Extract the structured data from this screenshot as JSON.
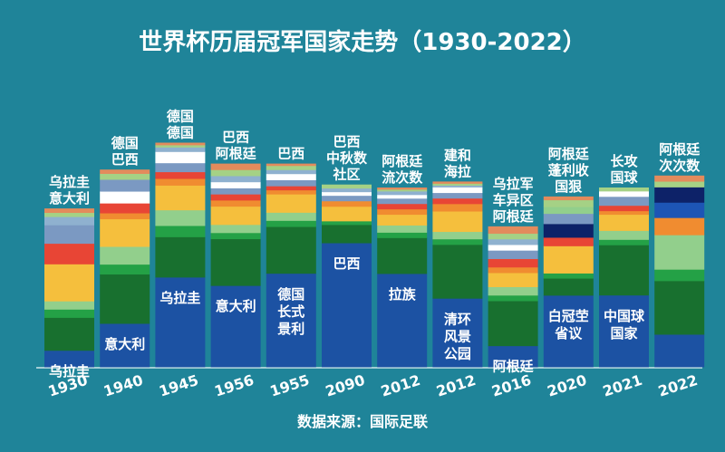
{
  "title": "世界杯历届冠军国家走势（1930-2022）",
  "source": "数据来源：国际足联",
  "chart_data": {
    "type": "bar",
    "stacked": true,
    "normalized_percent": true,
    "categories": [
      "1930",
      "1940",
      "1945",
      "1956",
      "1955",
      "2090",
      "2012",
      "2012",
      "2016",
      "2020",
      "2021",
      "2022"
    ],
    "top_labels": [
      [
        "乌拉圭",
        "意大利"
      ],
      [
        "德国",
        "巴西"
      ],
      [
        "德国",
        "德国"
      ],
      [
        "巴西",
        "阿根廷"
      ],
      [
        "巴西"
      ],
      [
        "巴西",
        "中秋数",
        "社区"
      ],
      [
        "阿根廷",
        "流次数"
      ],
      [
        "建和",
        "海拉"
      ],
      [
        "乌拉军",
        "车异区",
        "阿根廷"
      ],
      [
        "阿根廷",
        "蓬利收",
        "国狠"
      ],
      [
        "长攻",
        "国球"
      ],
      [
        "阿根廷",
        "次次数"
      ]
    ],
    "bottom_labels": [
      [
        "乌拉圭"
      ],
      [
        "意大利"
      ],
      [
        "乌拉圭"
      ],
      [
        "意大利"
      ],
      [
        "德国",
        "长式",
        "景利"
      ],
      [
        "巴西"
      ],
      [
        "拉族"
      ],
      [
        "清环",
        "风景",
        "公园"
      ],
      [
        "阿根廷"
      ],
      [
        "白冠茔",
        "省议"
      ],
      [
        "中国球",
        "国家"
      ],
      []
    ],
    "segments": [
      [
        {
          "color": "#1c52a3",
          "value": 8
        },
        {
          "color": "#18702f",
          "value": 16
        },
        {
          "color": "#24a146",
          "value": 4
        },
        {
          "color": "#92cf8c",
          "value": 4
        },
        {
          "color": "#f5bf3d",
          "value": 18
        },
        {
          "color": "#e84535",
          "value": 10
        },
        {
          "color": "#7b99c2",
          "value": 9
        },
        {
          "color": "#8fb1cf",
          "value": 4
        },
        {
          "color": "#a5d185",
          "value": 2
        },
        {
          "color": "#e38b5c",
          "value": 2
        }
      ],
      [
        {
          "color": "#1c52a3",
          "value": 22
        },
        {
          "color": "#18702f",
          "value": 25
        },
        {
          "color": "#24a146",
          "value": 5
        },
        {
          "color": "#92cf8c",
          "value": 9
        },
        {
          "color": "#f5bf3d",
          "value": 14
        },
        {
          "color": "#f08c30",
          "value": 3
        },
        {
          "color": "#e84535",
          "value": 5
        },
        {
          "color": "#ffffff",
          "value": 6
        },
        {
          "color": "#7b99c2",
          "value": 6
        },
        {
          "color": "#a5d185",
          "value": 3
        },
        {
          "color": "#e38b5c",
          "value": 2
        }
      ],
      [
        {
          "color": "#1c52a3",
          "value": 40
        },
        {
          "color": "#18702f",
          "value": 18
        },
        {
          "color": "#24a146",
          "value": 5
        },
        {
          "color": "#92cf8c",
          "value": 7
        },
        {
          "color": "#f5bf3d",
          "value": 11
        },
        {
          "color": "#f08c30",
          "value": 3
        },
        {
          "color": "#e84535",
          "value": 3
        },
        {
          "color": "#7b99c2",
          "value": 4
        },
        {
          "color": "#ffffff",
          "value": 5
        },
        {
          "color": "#8fb1cf",
          "value": 2
        },
        {
          "color": "#a5d185",
          "value": 1
        },
        {
          "color": "#e38b5c",
          "value": 1
        }
      ],
      [
        {
          "color": "#1c52a3",
          "value": 40
        },
        {
          "color": "#18702f",
          "value": 23
        },
        {
          "color": "#24a146",
          "value": 3
        },
        {
          "color": "#92cf8c",
          "value": 4
        },
        {
          "color": "#f5bf3d",
          "value": 9
        },
        {
          "color": "#f08c30",
          "value": 3
        },
        {
          "color": "#e84535",
          "value": 3
        },
        {
          "color": "#7b99c2",
          "value": 3
        },
        {
          "color": "#ffffff",
          "value": 3
        },
        {
          "color": "#8fb1cf",
          "value": 3
        },
        {
          "color": "#a5d185",
          "value": 3
        },
        {
          "color": "#e38b5c",
          "value": 3
        }
      ],
      [
        {
          "color": "#1c52a3",
          "value": 46
        },
        {
          "color": "#18702f",
          "value": 23
        },
        {
          "color": "#24a146",
          "value": 3
        },
        {
          "color": "#92cf8c",
          "value": 4
        },
        {
          "color": "#f5bf3d",
          "value": 9
        },
        {
          "color": "#f08c30",
          "value": 2
        },
        {
          "color": "#e84535",
          "value": 2
        },
        {
          "color": "#7b99c2",
          "value": 3
        },
        {
          "color": "#ffffff",
          "value": 3
        },
        {
          "color": "#8fb1cf",
          "value": 2
        },
        {
          "color": "#a5d185",
          "value": 2
        },
        {
          "color": "#e38b5c",
          "value": 1
        }
      ],
      [
        {
          "color": "#1c52a3",
          "value": 68
        },
        {
          "color": "#18702f",
          "value": 10
        },
        {
          "color": "#24a146",
          "value": 2
        },
        {
          "color": "#f5bf3d",
          "value": 8
        },
        {
          "color": "#f08c30",
          "value": 3
        },
        {
          "color": "#7b99c2",
          "value": 3
        },
        {
          "color": "#ffffff",
          "value": 2
        },
        {
          "color": "#8fb1cf",
          "value": 2
        },
        {
          "color": "#a5d185",
          "value": 2
        }
      ],
      [
        {
          "color": "#1c52a3",
          "value": 52
        },
        {
          "color": "#18702f",
          "value": 20
        },
        {
          "color": "#24a146",
          "value": 3
        },
        {
          "color": "#92cf8c",
          "value": 4
        },
        {
          "color": "#f5bf3d",
          "value": 6
        },
        {
          "color": "#f08c30",
          "value": 3
        },
        {
          "color": "#e84535",
          "value": 3
        },
        {
          "color": "#7b99c2",
          "value": 3
        },
        {
          "color": "#ffffff",
          "value": 2
        },
        {
          "color": "#8fb1cf",
          "value": 2
        },
        {
          "color": "#a5d185",
          "value": 1
        },
        {
          "color": "#e38b5c",
          "value": 1
        }
      ],
      [
        {
          "color": "#1c52a3",
          "value": 37
        },
        {
          "color": "#18702f",
          "value": 29
        },
        {
          "color": "#24a146",
          "value": 3
        },
        {
          "color": "#92cf8c",
          "value": 4
        },
        {
          "color": "#f5bf3d",
          "value": 11
        },
        {
          "color": "#f08c30",
          "value": 4
        },
        {
          "color": "#e84535",
          "value": 3
        },
        {
          "color": "#7b99c2",
          "value": 3
        },
        {
          "color": "#ffffff",
          "value": 3
        },
        {
          "color": "#8fb1cf",
          "value": 1
        },
        {
          "color": "#a5d185",
          "value": 1
        },
        {
          "color": "#e38b5c",
          "value": 1
        }
      ],
      [
        {
          "color": "#1c52a3",
          "value": 15
        },
        {
          "color": "#18702f",
          "value": 32
        },
        {
          "color": "#24a146",
          "value": 4
        },
        {
          "color": "#92cf8c",
          "value": 6
        },
        {
          "color": "#f5bf3d",
          "value": 10
        },
        {
          "color": "#f08c30",
          "value": 4
        },
        {
          "color": "#e84535",
          "value": 6
        },
        {
          "color": "#7b99c2",
          "value": 6
        },
        {
          "color": "#ffffff",
          "value": 4
        },
        {
          "color": "#8fb1cf",
          "value": 4
        },
        {
          "color": "#a5d185",
          "value": 4
        },
        {
          "color": "#e38b5c",
          "value": 5
        }
      ],
      [
        {
          "color": "#1c52a3",
          "value": 42
        },
        {
          "color": "#18702f",
          "value": 10
        },
        {
          "color": "#24a146",
          "value": 3
        },
        {
          "color": "#f5bf3d",
          "value": 16
        },
        {
          "color": "#e84535",
          "value": 5
        },
        {
          "color": "#0d2268",
          "value": 8
        },
        {
          "color": "#7b99c2",
          "value": 6
        },
        {
          "color": "#92cf8c",
          "value": 4
        },
        {
          "color": "#a5d185",
          "value": 4
        },
        {
          "color": "#e38b5c",
          "value": 2
        }
      ],
      [
        {
          "color": "#1c52a3",
          "value": 40
        },
        {
          "color": "#18702f",
          "value": 28
        },
        {
          "color": "#24a146",
          "value": 3
        },
        {
          "color": "#92cf8c",
          "value": 5
        },
        {
          "color": "#f5bf3d",
          "value": 9
        },
        {
          "color": "#f08c30",
          "value": 2
        },
        {
          "color": "#e84535",
          "value": 3
        },
        {
          "color": "#7b99c2",
          "value": 5
        },
        {
          "color": "#ffffff",
          "value": 3
        },
        {
          "color": "#a5d185",
          "value": 2
        }
      ],
      [
        {
          "color": "#1c52a3",
          "value": 17
        },
        {
          "color": "#18702f",
          "value": 28
        },
        {
          "color": "#24a146",
          "value": 6
        },
        {
          "color": "#92cf8c",
          "value": 18
        },
        {
          "color": "#f08c30",
          "value": 9
        },
        {
          "color": "#1d55b5",
          "value": 8
        },
        {
          "color": "#0d2268",
          "value": 8
        },
        {
          "color": "#a5d185",
          "value": 3
        },
        {
          "color": "#e38b5c",
          "value": 3
        }
      ]
    ],
    "bar_heights_percent": [
      53,
      66,
      75,
      68,
      68,
      61,
      60,
      62,
      47,
      57,
      60,
      64
    ]
  }
}
